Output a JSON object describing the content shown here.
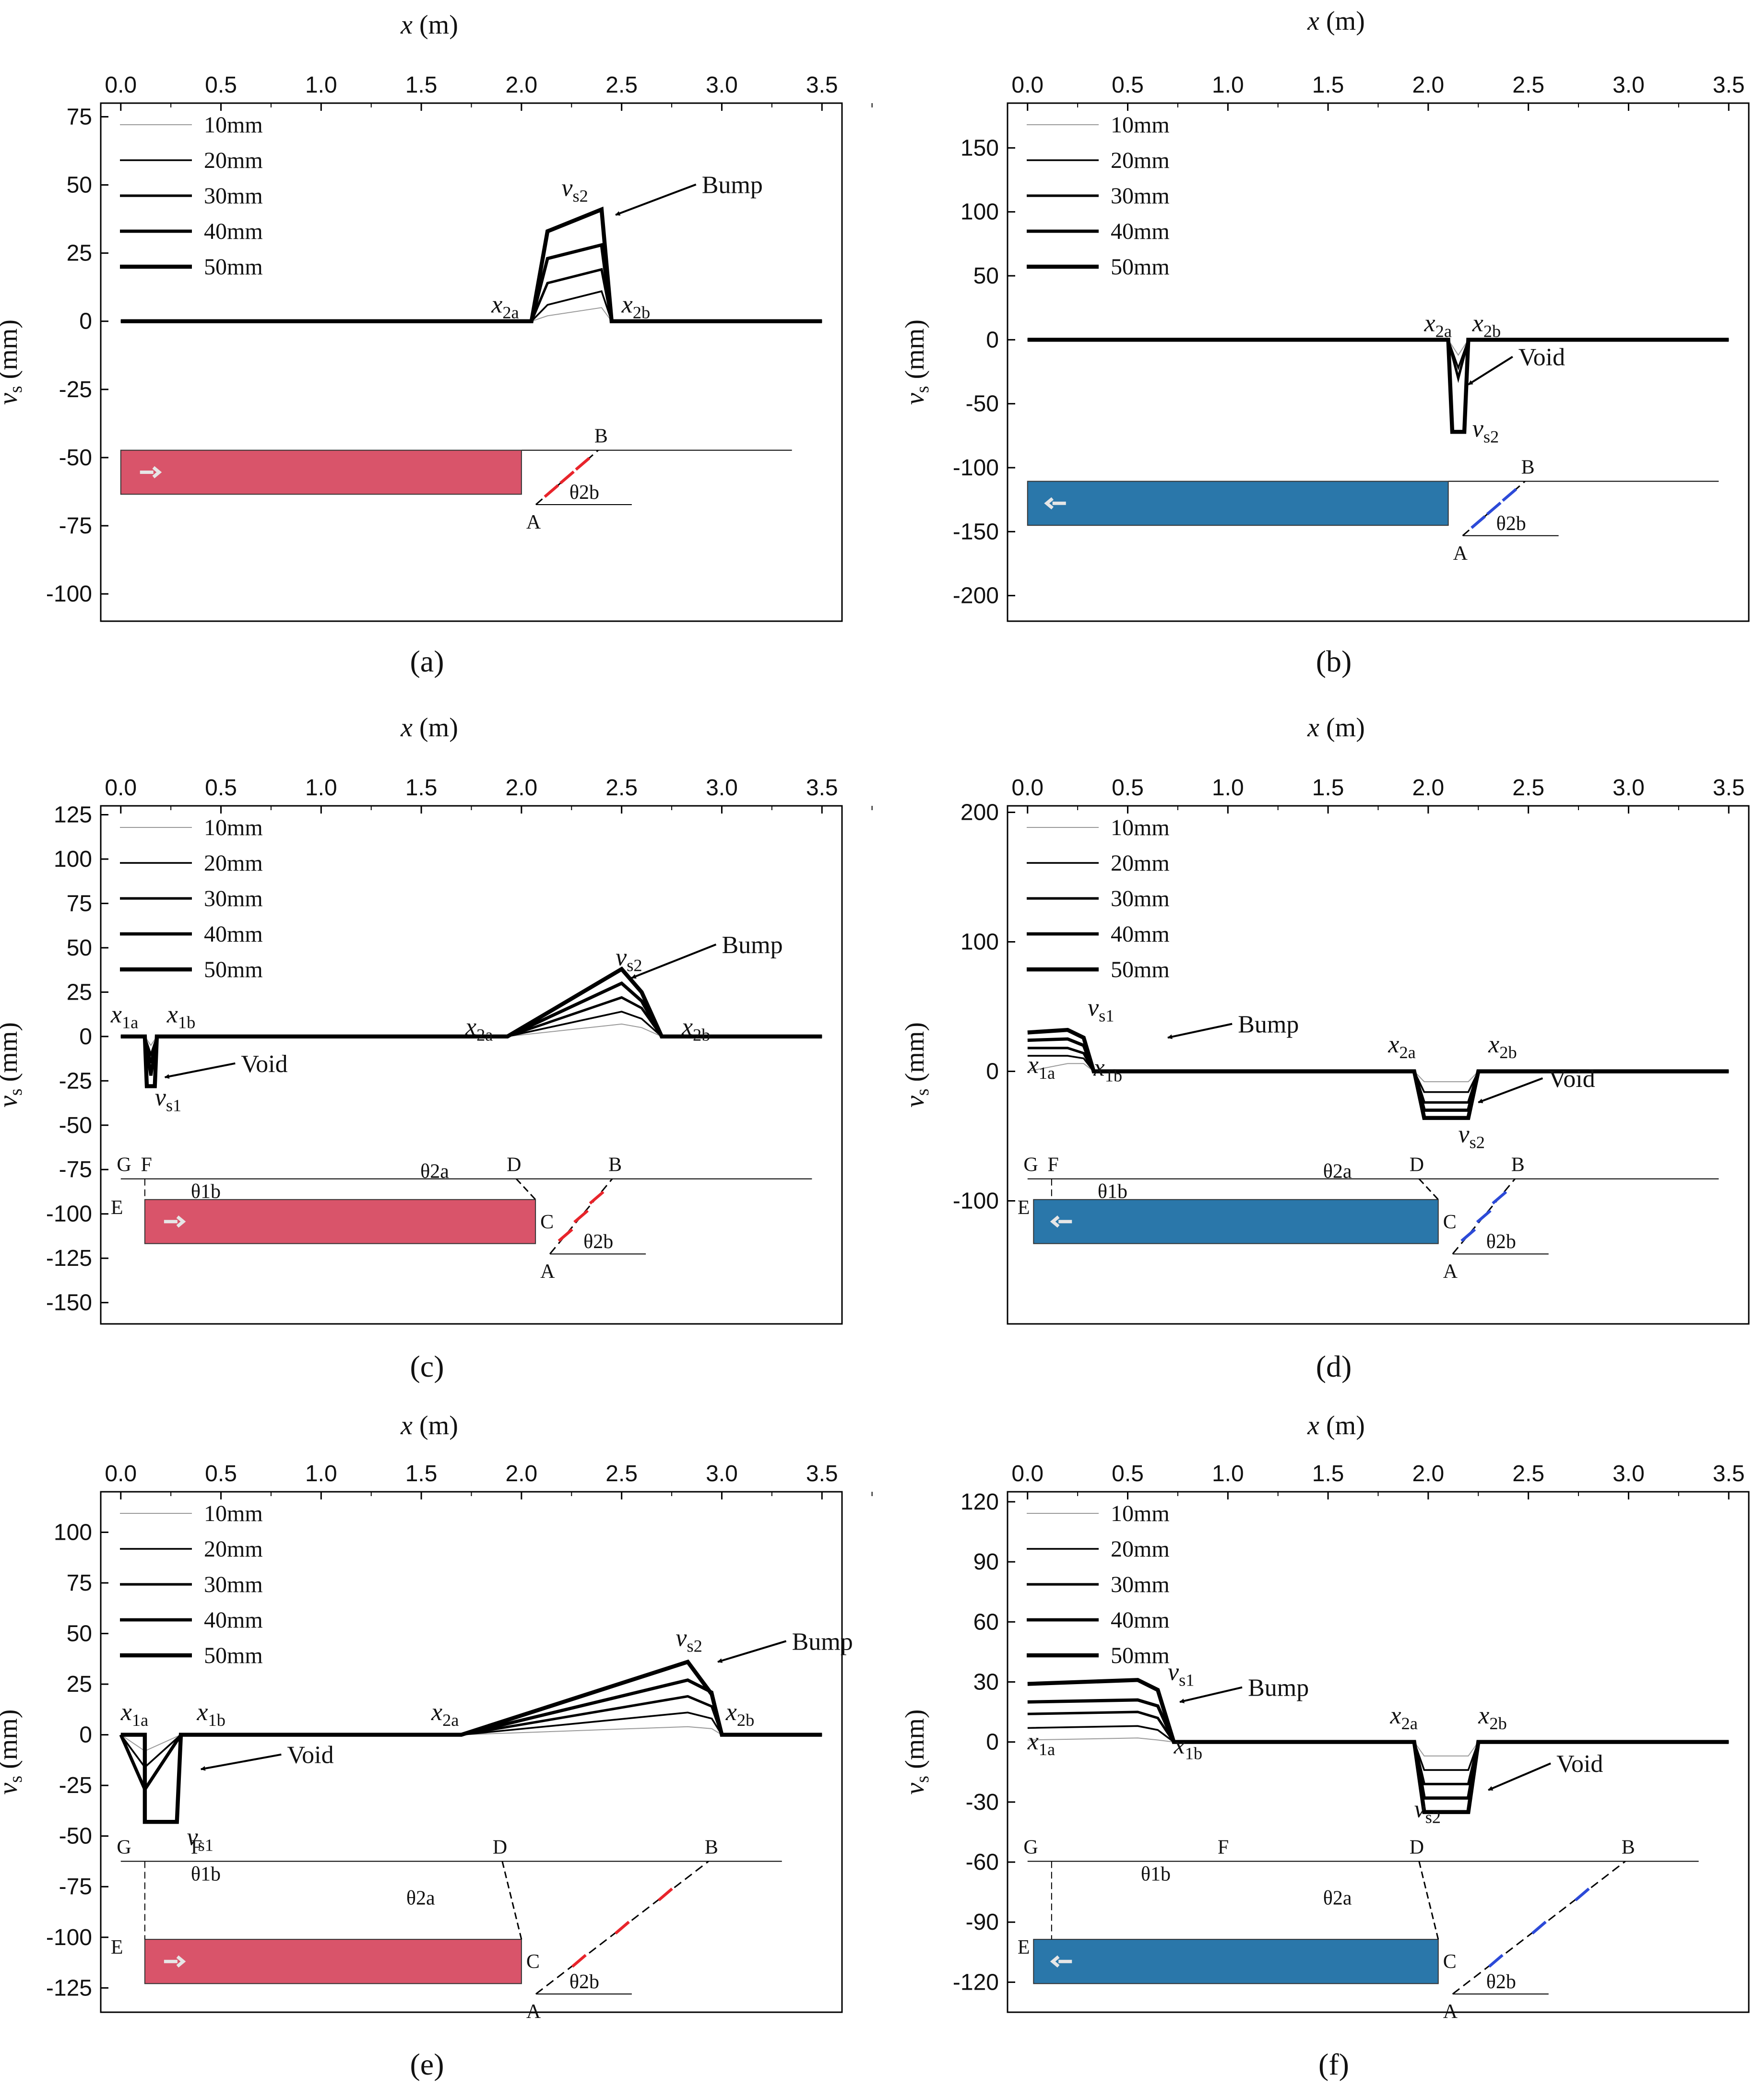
{
  "figure": {
    "shared": {
      "x_axis_label": "x (m)",
      "y_axis_label": "vs (mm)",
      "x_ticks": [
        "0.0",
        "0.5",
        "1.0",
        "1.5",
        "2.0",
        "2.5",
        "3.0",
        "3.5"
      ],
      "legend": [
        "10mm",
        "20mm",
        "30mm",
        "40mm",
        "50mm"
      ],
      "colors": {
        "red_block": "#d9546a",
        "blue_block": "#2a77aa",
        "red_arrow": "#e8242b",
        "blue_arrow": "#2c4ad8",
        "line": "#000000"
      }
    }
  },
  "chart_data": [
    {
      "caption": "(a)",
      "type": "line",
      "ylim": [
        -110,
        80
      ],
      "yticks": [
        75,
        50,
        25,
        0,
        -25,
        -50,
        -75,
        -100
      ],
      "xlim": [
        -0.1,
        3.6
      ],
      "series": [
        {
          "name": "10mm",
          "x": [
            0,
            2.05,
            2.13,
            2.4,
            2.45,
            3.5
          ],
          "y": [
            0,
            0,
            2,
            5,
            0,
            0
          ]
        },
        {
          "name": "20mm",
          "x": [
            0,
            2.05,
            2.13,
            2.4,
            2.45,
            3.5
          ],
          "y": [
            0,
            0,
            6,
            11,
            0,
            0
          ]
        },
        {
          "name": "30mm",
          "x": [
            0,
            2.05,
            2.13,
            2.4,
            2.45,
            3.5
          ],
          "y": [
            0,
            0,
            14,
            19,
            0,
            0
          ]
        },
        {
          "name": "40mm",
          "x": [
            0,
            2.05,
            2.13,
            2.4,
            2.45,
            3.5
          ],
          "y": [
            0,
            0,
            23,
            28,
            0,
            0
          ]
        },
        {
          "name": "50mm",
          "x": [
            0,
            2.05,
            2.13,
            2.4,
            2.45,
            3.5
          ],
          "y": [
            0,
            0,
            33,
            41,
            0,
            0
          ]
        }
      ],
      "annotations": {
        "peak": "vs2",
        "feature": "Bump",
        "left": "x2a",
        "right": "x2b"
      },
      "inset_labels": [
        "B",
        "A",
        "θ2b"
      ]
    },
    {
      "caption": "(b)",
      "type": "line",
      "ylim": [
        -220,
        185
      ],
      "yticks": [
        150,
        100,
        50,
        0,
        -50,
        -100,
        -150,
        -200
      ],
      "xlim": [
        -0.1,
        3.6
      ],
      "series": [
        {
          "name": "10mm",
          "x": [
            0,
            2.1,
            2.15,
            2.2,
            3.5
          ],
          "y": [
            0,
            0,
            -12,
            0,
            0
          ]
        },
        {
          "name": "20mm",
          "x": [
            0,
            2.1,
            2.15,
            2.2,
            3.5
          ],
          "y": [
            0,
            0,
            -22,
            0,
            0
          ]
        },
        {
          "name": "30mm",
          "x": [
            0,
            2.1,
            2.15,
            2.2,
            3.5
          ],
          "y": [
            0,
            0,
            -30,
            0,
            0
          ]
        },
        {
          "name": "40mm",
          "x": [
            0,
            2.1,
            2.12,
            2.18,
            2.2,
            3.5
          ],
          "y": [
            0,
            0,
            -72,
            -72,
            0,
            0
          ]
        },
        {
          "name": "50mm",
          "x": [
            0,
            2.1,
            2.12,
            2.18,
            2.2,
            3.5
          ],
          "y": [
            0,
            0,
            -72,
            -72,
            0,
            0
          ]
        }
      ],
      "annotations": {
        "peak": "vs2",
        "feature": "Void",
        "left": "x2a",
        "right": "x2b"
      },
      "inset_labels": [
        "B",
        "A",
        "θ2b"
      ]
    },
    {
      "caption": "(c)",
      "type": "line",
      "ylim": [
        -162,
        130
      ],
      "yticks": [
        125,
        100,
        75,
        50,
        25,
        0,
        -25,
        -50,
        -75,
        -100,
        -125,
        -150
      ],
      "xlim": [
        -0.1,
        3.6
      ],
      "series": [
        {
          "name": "10mm",
          "x": [
            0,
            0.12,
            0.15,
            0.18,
            1.93,
            2.5,
            2.6,
            2.7,
            3.5
          ],
          "y": [
            0,
            0,
            -5,
            0,
            0,
            7,
            5,
            0,
            0
          ]
        },
        {
          "name": "20mm",
          "x": [
            0,
            0.12,
            0.15,
            0.18,
            1.93,
            2.5,
            2.6,
            2.7,
            3.5
          ],
          "y": [
            0,
            0,
            -10,
            0,
            0,
            14,
            10,
            0,
            0
          ]
        },
        {
          "name": "30mm",
          "x": [
            0,
            0.12,
            0.15,
            0.18,
            1.93,
            2.5,
            2.6,
            2.7,
            3.5
          ],
          "y": [
            0,
            0,
            -15,
            0,
            0,
            22,
            16,
            0,
            0
          ]
        },
        {
          "name": "40mm",
          "x": [
            0,
            0.12,
            0.15,
            0.18,
            1.93,
            2.5,
            2.6,
            2.7,
            3.5
          ],
          "y": [
            0,
            0,
            -22,
            0,
            0,
            30,
            20,
            0,
            0
          ]
        },
        {
          "name": "50mm",
          "x": [
            0,
            0.12,
            0.13,
            0.17,
            0.18,
            1.93,
            2.5,
            2.6,
            2.7,
            3.5
          ],
          "y": [
            0,
            0,
            -28,
            -28,
            0,
            0,
            38,
            25,
            0,
            0
          ]
        }
      ],
      "annotations": {
        "peak": "vs2",
        "trough": "vs1",
        "feature_bump": "Bump",
        "feature_void": "Void",
        "labels": [
          "x1a",
          "x1b",
          "x2a",
          "x2b"
        ]
      },
      "inset_labels": [
        "G",
        "F",
        "θ1b",
        "E",
        "θ2a",
        "D",
        "C",
        "B",
        "A",
        "θ2b"
      ]
    },
    {
      "caption": "(d)",
      "type": "line",
      "ylim": [
        -195,
        205
      ],
      "yticks": [
        200,
        100,
        0,
        -100
      ],
      "xlim": [
        -0.1,
        3.6
      ],
      "series": [
        {
          "name": "10mm",
          "x": [
            0,
            0.2,
            0.28,
            0.33,
            1.93,
            1.98,
            2.2,
            2.25,
            3.5
          ],
          "y": [
            0,
            6,
            6,
            0,
            0,
            -8,
            -8,
            0,
            0
          ]
        },
        {
          "name": "20mm",
          "x": [
            0,
            0.2,
            0.28,
            0.33,
            1.93,
            1.98,
            2.2,
            2.25,
            3.5
          ],
          "y": [
            12,
            12,
            10,
            0,
            0,
            -16,
            -16,
            0,
            0
          ]
        },
        {
          "name": "30mm",
          "x": [
            0,
            0.2,
            0.28,
            0.33,
            1.93,
            1.98,
            2.2,
            2.25,
            3.5
          ],
          "y": [
            18,
            18,
            14,
            0,
            0,
            -24,
            -24,
            0,
            0
          ]
        },
        {
          "name": "40mm",
          "x": [
            0,
            0.2,
            0.28,
            0.33,
            1.93,
            1.98,
            2.2,
            2.25,
            3.5
          ],
          "y": [
            24,
            25,
            20,
            0,
            0,
            -30,
            -30,
            0,
            0
          ]
        },
        {
          "name": "50mm",
          "x": [
            0,
            0.2,
            0.28,
            0.33,
            1.93,
            1.98,
            2.2,
            2.25,
            3.5
          ],
          "y": [
            30,
            32,
            26,
            0,
            0,
            -36,
            -36,
            0,
            0
          ]
        }
      ],
      "annotations": {
        "peak": "vs1",
        "trough": "vs2",
        "feature_bump": "Bump",
        "feature_void": "Void",
        "labels": [
          "x1a",
          "x1b",
          "x2a",
          "x2b"
        ]
      },
      "inset_labels": [
        "G",
        "F",
        "θ1b",
        "E",
        "θ2a",
        "D",
        "C",
        "B",
        "θ2b",
        "A"
      ]
    },
    {
      "caption": "(e)",
      "type": "line",
      "ylim": [
        -137,
        120
      ],
      "yticks": [
        100,
        75,
        50,
        25,
        0,
        -25,
        -50,
        -75,
        -100,
        -125
      ],
      "xlim": [
        -0.1,
        3.6
      ],
      "series": [
        {
          "name": "10mm",
          "x": [
            0,
            0.12,
            0.3,
            1.7,
            2.83,
            2.95,
            3.0,
            3.5
          ],
          "y": [
            0,
            -8,
            0,
            0,
            4,
            3,
            0,
            0
          ]
        },
        {
          "name": "20mm",
          "x": [
            0,
            0.12,
            0.3,
            1.7,
            2.83,
            2.95,
            3.0,
            3.5
          ],
          "y": [
            0,
            -16,
            0,
            0,
            11,
            8,
            0,
            0
          ]
        },
        {
          "name": "30mm",
          "x": [
            0,
            0.12,
            0.3,
            1.7,
            2.83,
            2.95,
            3.0,
            3.5
          ],
          "y": [
            0,
            -27,
            0,
            0,
            19,
            14,
            0,
            0
          ]
        },
        {
          "name": "40mm",
          "x": [
            0,
            0.12,
            0.3,
            1.7,
            2.83,
            2.95,
            3.0,
            3.5
          ],
          "y": [
            0,
            -27,
            0,
            0,
            27,
            21,
            0,
            0
          ]
        },
        {
          "name": "50mm",
          "x": [
            0,
            0.12,
            0.12,
            0.28,
            0.3,
            1.7,
            2.83,
            2.95,
            3.0,
            3.5
          ],
          "y": [
            0,
            0,
            -43,
            -43,
            0,
            0,
            36,
            20,
            0,
            0
          ]
        }
      ],
      "annotations": {
        "peak": "vs2",
        "trough": "vs1",
        "feature_bump": "Bump",
        "feature_void": "Void",
        "labels": [
          "x1a",
          "x1b",
          "x2a",
          "x2b"
        ]
      },
      "inset_labels": [
        "G",
        "F",
        "E",
        "θ1b",
        "D",
        "θ2a",
        "C",
        "B",
        "A",
        "θ2b"
      ]
    },
    {
      "caption": "(f)",
      "type": "line",
      "ylim": [
        -135,
        125
      ],
      "yticks": [
        120,
        90,
        60,
        30,
        0,
        -30,
        -60,
        -90,
        -120
      ],
      "xlim": [
        -0.1,
        3.6
      ],
      "series": [
        {
          "name": "10mm",
          "x": [
            0,
            0.55,
            0.65,
            0.73,
            1.93,
            1.98,
            2.2,
            2.25,
            3.5
          ],
          "y": [
            1,
            2,
            1,
            0,
            0,
            -7,
            -7,
            0,
            0
          ]
        },
        {
          "name": "20mm",
          "x": [
            0,
            0.55,
            0.65,
            0.73,
            1.93,
            1.98,
            2.2,
            2.25,
            3.5
          ],
          "y": [
            7,
            8,
            6,
            0,
            0,
            -14,
            -14,
            0,
            0
          ]
        },
        {
          "name": "30mm",
          "x": [
            0,
            0.55,
            0.65,
            0.73,
            1.93,
            1.98,
            2.2,
            2.25,
            3.5
          ],
          "y": [
            14,
            15,
            12,
            0,
            0,
            -21,
            -21,
            0,
            0
          ]
        },
        {
          "name": "40mm",
          "x": [
            0,
            0.55,
            0.65,
            0.73,
            1.93,
            1.98,
            2.2,
            2.25,
            3.5
          ],
          "y": [
            20,
            21,
            18,
            0,
            0,
            -28,
            -28,
            0,
            0
          ]
        },
        {
          "name": "50mm",
          "x": [
            0,
            0.55,
            0.65,
            0.73,
            1.93,
            1.98,
            2.2,
            2.25,
            3.5
          ],
          "y": [
            29,
            31,
            26,
            0,
            0,
            -35,
            -35,
            0,
            0
          ]
        }
      ],
      "annotations": {
        "peak": "vs1",
        "trough": "vs2",
        "feature_bump": "Bump",
        "feature_void": "Void",
        "labels": [
          "x1a",
          "x1b",
          "x2a",
          "x2b"
        ]
      },
      "inset_labels": [
        "G",
        "F",
        "E",
        "θ1b",
        "D",
        "θ2a",
        "C",
        "B",
        "A",
        "θ2b"
      ]
    }
  ]
}
